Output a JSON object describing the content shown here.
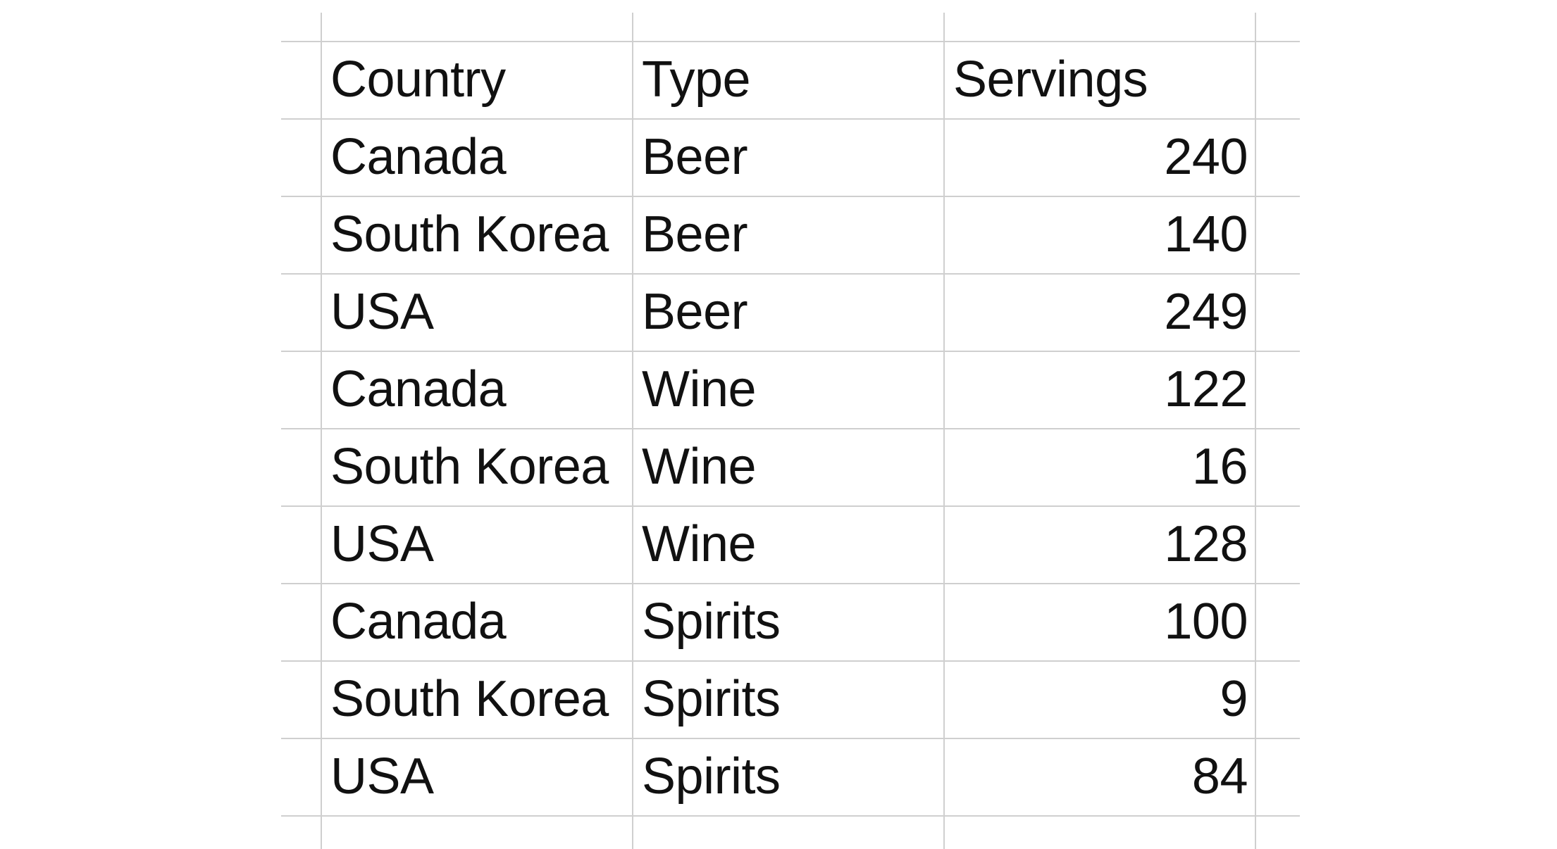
{
  "table": {
    "headers": [
      "Country",
      "Type",
      "Servings"
    ],
    "rows": [
      [
        "Canada",
        "Beer",
        "240"
      ],
      [
        "South Korea",
        "Beer",
        "140"
      ],
      [
        "USA",
        "Beer",
        "249"
      ],
      [
        "Canada",
        "Wine",
        "122"
      ],
      [
        "South Korea",
        "Wine",
        "16"
      ],
      [
        "USA",
        "Wine",
        "128"
      ],
      [
        "Canada",
        "Spirits",
        "100"
      ],
      [
        "South Korea",
        "Spirits",
        "9"
      ],
      [
        "USA",
        "Spirits",
        "84"
      ]
    ]
  },
  "colors": {
    "gridline": "#cfcfcf",
    "text": "#111111",
    "background": "#ffffff"
  }
}
